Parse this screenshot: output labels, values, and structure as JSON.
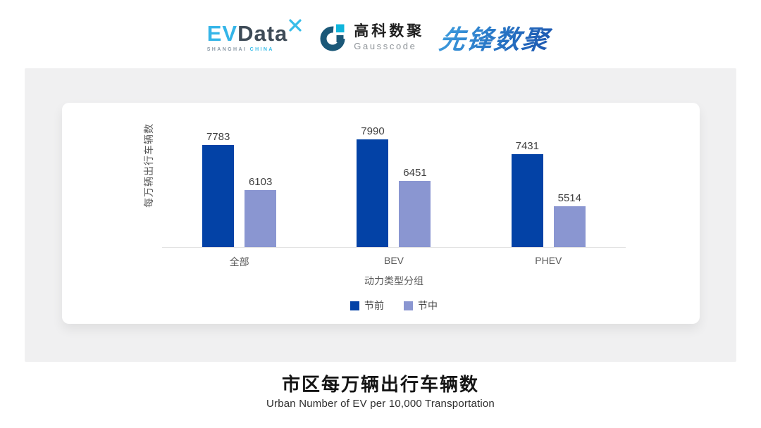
{
  "header": {
    "evdata_logo": {
      "ev": "EV",
      "data": "Data",
      "sub_left": "SHANGHAI",
      "sub_right": "CHINA"
    },
    "gausscode_logo": {
      "cn": "高科数聚",
      "en": "Gausscode"
    },
    "pioneer_logo": {
      "text": "先锋数聚"
    }
  },
  "colors": {
    "evdata_cyan": "#35b5e8",
    "evdata_dark": "#3e4b57",
    "gausscode_dark": "#1b5878",
    "gausscode_cyan": "#0fb5dc",
    "pioneer_blue": "#2a79c8",
    "panel_gray": "#f0f0f1",
    "series_pre": "#0342a6",
    "series_mid": "#8a96d1"
  },
  "chart_data": {
    "type": "bar",
    "title": "市区每万辆出行车辆数",
    "subtitle": "Urban Number of EV per 10,000 Transportation",
    "xlabel": "动力类型分组",
    "ylabel": "每万辆出行车辆数",
    "categories": [
      "全部",
      "BEV",
      "PHEV"
    ],
    "series": [
      {
        "name": "节前",
        "color": "#0342a6",
        "values": [
          7783,
          7990,
          7431
        ]
      },
      {
        "name": "节中",
        "color": "#8a96d1",
        "values": [
          6103,
          6451,
          5514
        ]
      }
    ],
    "ylim": [
      4000,
      8400
    ],
    "grid": false,
    "legend_position": "bottom",
    "value_labels": true
  }
}
